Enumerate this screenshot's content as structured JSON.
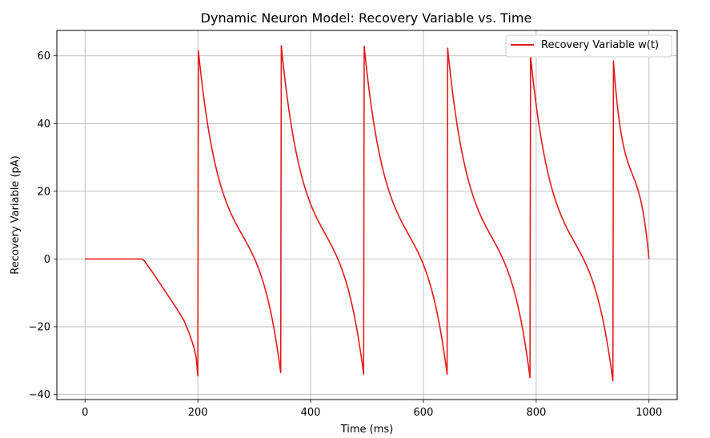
{
  "chart_data": {
    "type": "line",
    "title": "Dynamic Neuron Model: Recovery Variable vs. Time",
    "xlabel": "Time (ms)",
    "ylabel": "Recovery Variable (pA)",
    "xlim": [
      -50,
      1050
    ],
    "ylim": [
      -41.5,
      67.5
    ],
    "xticks": [
      0,
      200,
      400,
      600,
      800,
      1000
    ],
    "yticks": [
      -40,
      -20,
      0,
      20,
      40,
      60
    ],
    "grid": true,
    "legend": "top-right",
    "series": [
      {
        "name": "Recovery Variable w(t)",
        "color": "#e41a1c",
        "phases": [
          {
            "points": [
              [
                0,
                0
              ],
              [
                100,
                0
              ],
              [
                105,
                -0.5
              ],
              [
                120,
                -4
              ],
              [
                140,
                -9
              ],
              [
                160,
                -14
              ],
              [
                175,
                -18
              ],
              [
                185,
                -22
              ],
              [
                193,
                -26
              ],
              [
                197,
                -29
              ],
              [
                200,
                -34.5
              ]
            ]
          },
          {
            "decay_from": [
              201,
              61.5
            ],
            "to": [
              347,
              -33.5
            ]
          },
          {
            "decay_from": [
              348,
              63
            ],
            "to": [
              494,
              -34
            ]
          },
          {
            "decay_from": [
              495,
              62.8
            ],
            "to": [
              642,
              -34
            ]
          },
          {
            "decay_from": [
              643,
              62.3
            ],
            "to": [
              789,
              -35
            ]
          },
          {
            "decay_from": [
              790,
              60
            ],
            "to": [
              936,
              -36
            ]
          },
          {
            "decay_from": [
              937,
              58.5
            ],
            "to": [
              1000,
              0
            ]
          }
        ]
      }
    ]
  }
}
